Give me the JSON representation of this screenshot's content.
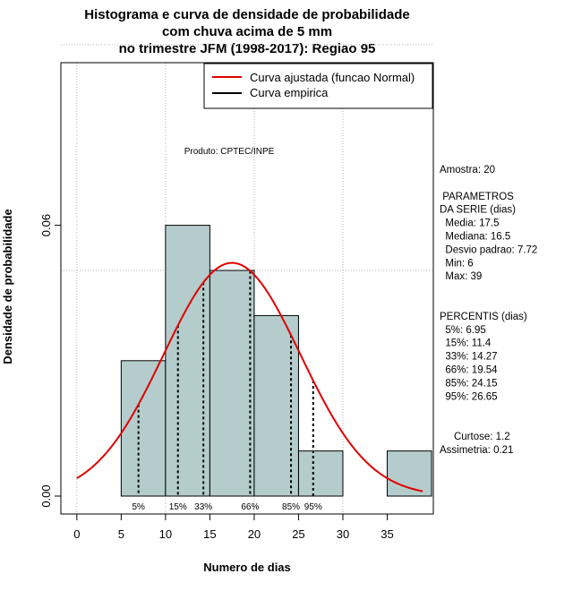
{
  "chart_data": {
    "type": "bar",
    "title_lines": [
      "Histograma e curva de densidade de probabilidade",
      "com chuva acima de 5 mm",
      "no trimestre JFM (1998-2017): Regiao 95"
    ],
    "xlabel": "Numero de dias",
    "ylabel": "Densidade de probabilidade",
    "xlim": [
      -1.8,
      40.2
    ],
    "ylim": [
      0,
      0.1
    ],
    "x_ticks": [
      0,
      5,
      10,
      15,
      20,
      25,
      30,
      35
    ],
    "y_ticks": [
      0.0,
      0.06
    ],
    "y_tick_labels": [
      "0.00",
      "0.06"
    ],
    "grid_x": [
      0,
      10,
      20,
      30
    ],
    "grid_y": [
      0.05,
      0.1
    ],
    "bins": [
      {
        "from": 5,
        "to": 10,
        "density": 0.03
      },
      {
        "from": 10,
        "to": 15,
        "density": 0.06
      },
      {
        "from": 15,
        "to": 20,
        "density": 0.05
      },
      {
        "from": 20,
        "to": 25,
        "density": 0.04
      },
      {
        "from": 25,
        "to": 30,
        "density": 0.01
      },
      {
        "from": 30,
        "to": 35,
        "density": 0.0
      },
      {
        "from": 35,
        "to": 40,
        "density": 0.01
      }
    ],
    "normal_curve": {
      "mean": 17.5,
      "sd": 7.72,
      "x_from": 0,
      "x_to": 39
    },
    "percentile_lines": [
      {
        "label": "5%",
        "value": 6.95
      },
      {
        "label": "15%",
        "value": 11.4
      },
      {
        "label": "33%",
        "value": 14.27
      },
      {
        "label": "66%",
        "value": 19.54
      },
      {
        "label": "85%",
        "value": 24.15
      },
      {
        "label": "95%",
        "value": 26.65
      }
    ],
    "legend": [
      {
        "label": "Curva ajustada (funcao Normal)",
        "color": "#e00000"
      },
      {
        "label": "Curva empirica",
        "color": "#000000"
      }
    ],
    "legend_position": "top-right",
    "annotation": "Produto: CPTEC/INPE",
    "colors": {
      "bar_fill": "#b4cccc",
      "bar_stroke": "#000000",
      "curve": "#e00000",
      "grid": "#b0b0b0"
    }
  },
  "side_panel": {
    "lines": [
      "Amostra: 20",
      "",
      " PARAMETROS",
      "DA SERIE (dias)",
      "  Media: 17.5",
      "  Mediana: 16.5",
      "  Desvio padrao: 7.72",
      "  Min: 6",
      "  Max: 39",
      "",
      "",
      "PERCENTIS (dias)",
      "  5%: 6.95",
      "  15%: 11.4",
      "  33%: 14.27",
      "  66%: 19.54",
      "  85%: 24.15",
      "  95%: 26.65",
      "",
      "",
      "     Curtose: 1.2",
      "Assimetria: 0.21"
    ]
  }
}
